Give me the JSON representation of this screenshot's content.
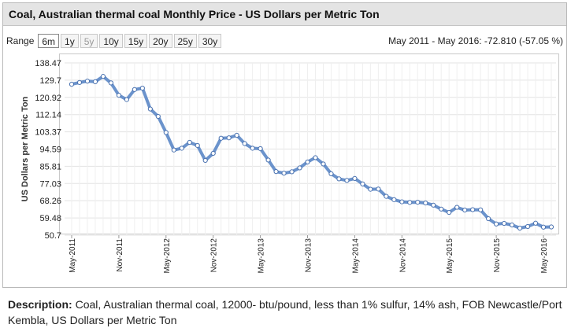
{
  "header": {
    "title": "Coal, Australian thermal coal Monthly Price - US Dollars per Metric Ton"
  },
  "range": {
    "label": "Range",
    "buttons": [
      {
        "label": "6m",
        "state": "active"
      },
      {
        "label": "1y",
        "state": "normal"
      },
      {
        "label": "5y",
        "state": "disabled"
      },
      {
        "label": "10y",
        "state": "normal"
      },
      {
        "label": "15y",
        "state": "normal"
      },
      {
        "label": "20y",
        "state": "normal"
      },
      {
        "label": "25y",
        "state": "normal"
      },
      {
        "label": "30y",
        "state": "normal"
      }
    ]
  },
  "change": {
    "text": "May 2011 - May 2016: -72.810 (-57.05 %)"
  },
  "description": {
    "label": "Description:",
    "text": "Coal, Australian thermal coal, 12000- btu/pound, less than 1% sulfur, 14% ash, FOB Newcastle/Port Kembla, US Dollars per Metric Ton"
  },
  "chart_data": {
    "type": "line",
    "ylabel": "US Dollars per Metric Ton",
    "ylim": [
      50.7,
      138.47
    ],
    "yticks": [
      50.7,
      59.48,
      68.26,
      77.03,
      85.81,
      94.59,
      103.37,
      112.14,
      120.92,
      129.7,
      138.47
    ],
    "ytick_labels": [
      "50.7",
      "59.48",
      "68.26",
      "77.03",
      "85.81",
      "94.59",
      "103.37",
      "112.14",
      "120.92",
      "129.7",
      "138.47"
    ],
    "xtick_labels": [
      "May-2011",
      "Nov-2011",
      "May-2012",
      "Nov-2012",
      "May-2013",
      "Nov-2013",
      "May-2014",
      "Nov-2014",
      "May-2015",
      "Nov-2015",
      "May-2016"
    ],
    "xtick_indices": [
      0,
      6,
      12,
      18,
      24,
      30,
      36,
      42,
      48,
      54,
      60
    ],
    "grid": true,
    "line_color": "#5b87c7",
    "marker_color": "#ffffff",
    "series": [
      {
        "values": [
          127.6,
          128.5,
          129.2,
          128.9,
          131.6,
          128.3,
          122.0,
          119.8,
          124.9,
          125.6,
          115.0,
          111.2,
          103.0,
          94.1,
          95.0,
          98.0,
          96.4,
          88.8,
          92.4,
          100.1,
          100.3,
          101.6,
          97.4,
          95.0,
          94.8,
          89.0,
          83.1,
          82.3,
          83.0,
          85.0,
          88.0,
          90.2,
          87.0,
          82.0,
          79.4,
          78.6,
          79.6,
          76.8,
          74.1,
          74.2,
          70.5,
          68.8,
          67.7,
          67.4,
          67.5,
          67.1,
          66.0,
          64.0,
          62.3,
          64.9,
          63.5,
          63.7,
          63.6,
          59.1,
          56.4,
          56.7,
          55.9,
          54.3,
          55.1,
          56.8,
          54.8,
          54.9
        ]
      }
    ]
  }
}
